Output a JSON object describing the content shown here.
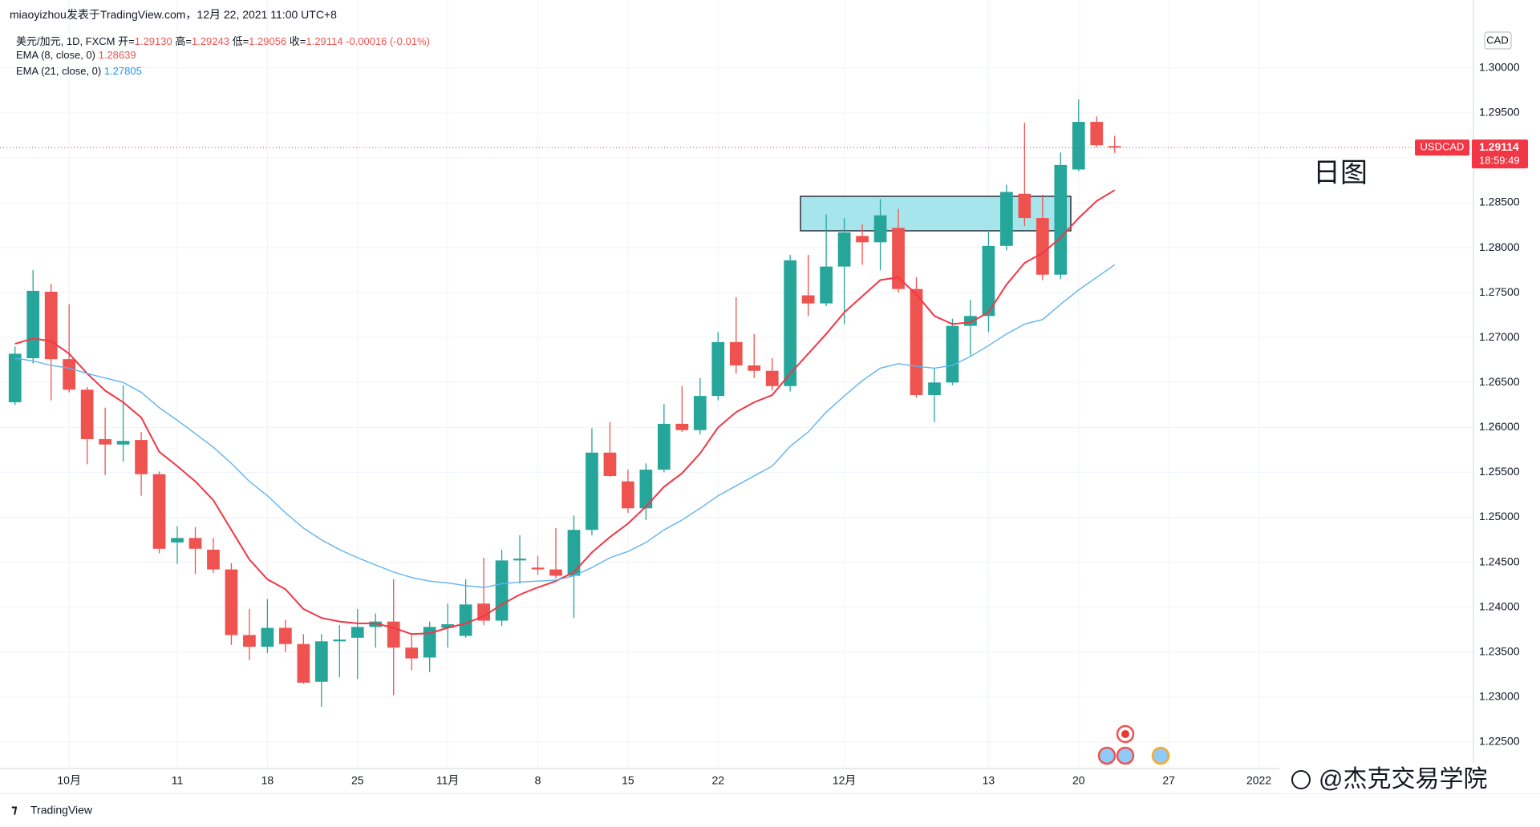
{
  "header": {
    "byline": "miaoyizhou发表于TradingView.com，12月 22, 2021 11:00 UTC+8",
    "symbol": "美元/加元, 1D, FXCM",
    "ohlc": [
      {
        "label": "开=",
        "value": "1.29130"
      },
      {
        "label": "高=",
        "value": "1.29243"
      },
      {
        "label": "低=",
        "value": "1.29056"
      },
      {
        "label": "收=",
        "value": "1.29114"
      }
    ],
    "change": "-0.00016 (-0.01%)"
  },
  "footer": {
    "logo": "TradingView",
    "watermark": "@杰克交易学院"
  },
  "chart_data": {
    "type": "candlestick",
    "currency": "CAD",
    "annotation": "日图",
    "up_color": "#26a69a",
    "down_color": "#ef5350",
    "grid": true,
    "candles": {
      "open": [
        1.2628,
        1.2677,
        1.2751,
        1.2676,
        1.2642,
        1.2587,
        1.2581,
        1.2586,
        1.2548,
        1.2472,
        1.2477,
        1.2464,
        1.2442,
        1.2369,
        1.2356,
        1.2377,
        1.2359,
        1.2317,
        1.2362,
        1.2366,
        1.2378,
        1.2384,
        1.2355,
        1.2344,
        1.2377,
        1.2368,
        1.2404,
        1.2385,
        1.2452,
        1.2444,
        1.2442,
        1.2435,
        1.2486,
        1.2572,
        1.254,
        1.251,
        1.2553,
        1.2604,
        1.2597,
        1.2635,
        1.2695,
        1.2669,
        1.2663,
        1.2646,
        1.2747,
        1.2738,
        1.2779,
        1.2813,
        1.2806,
        1.2822,
        1.2754,
        1.2636,
        1.265,
        1.2713,
        1.2724,
        1.2802,
        1.286,
        1.2833,
        1.277,
        1.2887,
        1.294,
        1.2913
      ],
      "high": [
        1.269,
        1.2775,
        1.276,
        1.2737,
        1.2645,
        1.2622,
        1.2647,
        1.2595,
        1.2551,
        1.249,
        1.2489,
        1.2477,
        1.2449,
        1.2398,
        1.2409,
        1.2386,
        1.237,
        1.237,
        1.238,
        1.2398,
        1.2393,
        1.2431,
        1.237,
        1.2384,
        1.2404,
        1.2431,
        1.2455,
        1.2464,
        1.248,
        1.2457,
        1.2488,
        1.2502,
        1.2599,
        1.2606,
        1.2553,
        1.256,
        1.2626,
        1.2646,
        1.2655,
        1.2706,
        1.2745,
        1.2704,
        1.2677,
        1.2792,
        1.2792,
        1.2837,
        1.2833,
        1.2826,
        1.2854,
        1.2843,
        1.2767,
        1.2666,
        1.2721,
        1.2742,
        1.2819,
        1.287,
        1.2939,
        1.2859,
        1.2906,
        1.2965,
        1.2946,
        1.29243
      ],
      "low": [
        1.2625,
        1.2671,
        1.263,
        1.2639,
        1.2559,
        1.2547,
        1.2562,
        1.2524,
        1.246,
        1.2448,
        1.2437,
        1.2438,
        1.2358,
        1.2341,
        1.2349,
        1.235,
        1.2315,
        1.2289,
        1.2322,
        1.232,
        1.2355,
        1.2302,
        1.233,
        1.2328,
        1.2355,
        1.2366,
        1.238,
        1.2379,
        1.2426,
        1.2436,
        1.2432,
        1.2388,
        1.248,
        1.2545,
        1.2505,
        1.2497,
        1.255,
        1.2595,
        1.2592,
        1.263,
        1.266,
        1.2655,
        1.2641,
        1.264,
        1.2724,
        1.2735,
        1.2715,
        1.2781,
        1.2775,
        1.275,
        1.2633,
        1.2606,
        1.2647,
        1.268,
        1.2706,
        1.2797,
        1.2824,
        1.2764,
        1.2765,
        1.2885,
        1.2912,
        1.29056
      ],
      "close": [
        1.2682,
        1.2752,
        1.2676,
        1.2642,
        1.2587,
        1.2581,
        1.2585,
        1.2548,
        1.2465,
        1.2477,
        1.2465,
        1.2442,
        1.2369,
        1.2356,
        1.2377,
        1.2359,
        1.2316,
        1.2362,
        1.2364,
        1.2378,
        1.2384,
        1.2355,
        1.2343,
        1.2378,
        1.2381,
        1.2403,
        1.2385,
        1.2452,
        1.2454,
        1.2442,
        1.2435,
        1.2486,
        1.2572,
        1.2546,
        1.251,
        1.2553,
        1.2604,
        1.2597,
        1.2635,
        1.2695,
        1.2669,
        1.2663,
        1.2646,
        1.2786,
        1.2738,
        1.2779,
        1.2817,
        1.2806,
        1.2836,
        1.2754,
        1.2636,
        1.265,
        1.2713,
        1.2724,
        1.2802,
        1.2862,
        1.2833,
        1.277,
        1.2892,
        1.294,
        1.2914,
        1.29114
      ]
    },
    "lines": [
      {
        "name": "EMA (8, close, 0)",
        "last": "1.28639",
        "color": "#f23645",
        "values": [
          1.2693,
          1.2699,
          1.2696,
          1.2682,
          1.266,
          1.2641,
          1.2628,
          1.2611,
          1.2573,
          1.2557,
          1.254,
          1.2519,
          1.2486,
          1.2453,
          1.2431,
          1.242,
          1.2398,
          1.2388,
          1.2384,
          1.2382,
          1.2382,
          1.2377,
          1.237,
          1.2371,
          1.2377,
          1.2382,
          1.239,
          1.2403,
          1.2414,
          1.2422,
          1.2429,
          1.2439,
          1.2461,
          1.2478,
          1.2493,
          1.2512,
          1.2534,
          1.2549,
          1.2571,
          1.26,
          1.2617,
          1.2628,
          1.2636,
          1.266,
          1.2682,
          1.2704,
          1.2728,
          1.2746,
          1.2764,
          1.2767,
          1.2748,
          1.2724,
          1.2715,
          1.2717,
          1.2728,
          1.2759,
          1.2783,
          1.2794,
          1.2811,
          1.2833,
          1.2852,
          1.2864
        ]
      },
      {
        "name": "EMA (21, close, 0)",
        "last": "1.27805",
        "color": "#5fb3f0",
        "values": [
          1.2677,
          1.2674,
          1.2669,
          1.2666,
          1.266,
          1.2655,
          1.265,
          1.2639,
          1.2622,
          1.2608,
          1.2593,
          1.2578,
          1.256,
          1.254,
          1.2524,
          1.2505,
          1.2488,
          1.2475,
          1.2464,
          1.2455,
          1.2447,
          1.2439,
          1.2433,
          1.2429,
          1.2427,
          1.2424,
          1.2422,
          1.2426,
          1.2428,
          1.2429,
          1.243,
          1.2435,
          1.2444,
          1.2455,
          1.2462,
          1.2472,
          1.2486,
          1.2497,
          1.251,
          1.2524,
          1.2535,
          1.2546,
          1.2557,
          1.2579,
          1.2595,
          1.2617,
          1.2635,
          1.2652,
          1.2666,
          1.2671,
          1.2668,
          1.2666,
          1.2669,
          1.2679,
          1.2691,
          1.2704,
          1.2715,
          1.272,
          1.2737,
          1.2753,
          1.2767,
          1.2781
        ]
      }
    ],
    "last_price": {
      "name": "USDCAD",
      "value": 1.29114,
      "countdown": "18:59:49",
      "color": "#f23645"
    },
    "xlim": [
      -0.3,
      80.9
    ],
    "xticks": [
      {
        "value": 3,
        "label": "10月"
      },
      {
        "value": 9,
        "label": "11"
      },
      {
        "value": 14,
        "label": "18"
      },
      {
        "value": 19,
        "label": "25"
      },
      {
        "value": 24,
        "label": "11月"
      },
      {
        "value": 29,
        "label": "8"
      },
      {
        "value": 34,
        "label": "15"
      },
      {
        "value": 39,
        "label": "22"
      },
      {
        "value": 46,
        "label": "12月"
      },
      {
        "value": 54,
        "label": "13"
      },
      {
        "value": 59,
        "label": "20"
      },
      {
        "value": 64,
        "label": "27"
      },
      {
        "value": 69,
        "label": "2022"
      }
    ],
    "ylim": [
      1.22205,
      1.30426
    ],
    "yticks": [
      {
        "value": 1.225,
        "label": "1.22500"
      },
      {
        "value": 1.23,
        "label": "1.23000"
      },
      {
        "value": 1.235,
        "label": "1.23500"
      },
      {
        "value": 1.24,
        "label": "1.24000"
      },
      {
        "value": 1.245,
        "label": "1.24500"
      },
      {
        "value": 1.25,
        "label": "1.25000"
      },
      {
        "value": 1.255,
        "label": "1.25500"
      },
      {
        "value": 1.26,
        "label": "1.26000"
      },
      {
        "value": 1.265,
        "label": "1.26500"
      },
      {
        "value": 1.27,
        "label": "1.27000"
      },
      {
        "value": 1.275,
        "label": "1.27500"
      },
      {
        "value": 1.28,
        "label": "1.28000"
      },
      {
        "value": 1.285,
        "label": "1.28500"
      },
      {
        "value": 1.29,
        "label": "1.29000"
      },
      {
        "value": 1.295,
        "label": "1.29500"
      },
      {
        "value": 1.3,
        "label": "1.30000"
      }
    ]
  }
}
